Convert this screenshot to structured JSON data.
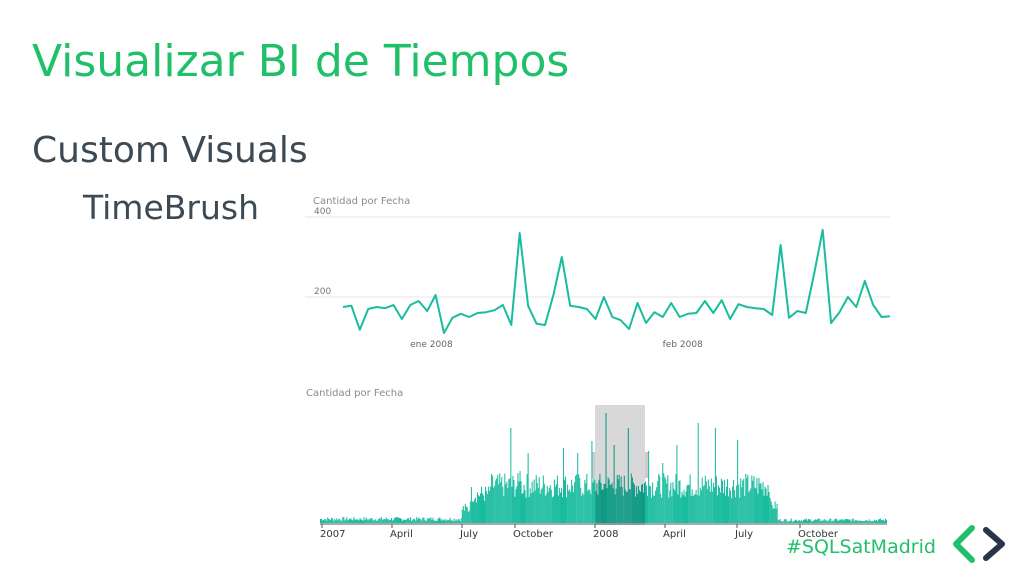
{
  "slide": {
    "title": "Visualizar BI de Tiempos",
    "heading": "Custom Visuals",
    "subheading": "TimeBrush",
    "hashtag": "#SQLSatMadrid"
  },
  "colors": {
    "title": "#20c06a",
    "text": "#3c4a56",
    "series": "#1abca0",
    "series_dark": "#0f9a86",
    "brush": "#d4d4d4"
  },
  "icons": {
    "logo": "chevrons-logo-icon"
  },
  "chart_data": [
    {
      "type": "line",
      "title": "Cantidad por Fecha",
      "ytick_labels": [
        "400",
        "200"
      ],
      "yticks": [
        400,
        200
      ],
      "ylim": [
        80,
        410
      ],
      "xtick_labels": [
        "ene 2008",
        "feb 2008"
      ],
      "xtick_index": [
        10,
        40
      ],
      "grid": true,
      "series": [
        {
          "values": [
            175,
            178,
            118,
            170,
            175,
            172,
            180,
            145,
            180,
            190,
            165,
            205,
            110,
            148,
            158,
            150,
            160,
            162,
            167,
            180,
            130,
            360,
            178,
            133,
            130,
            205,
            300,
            178,
            175,
            170,
            145,
            200,
            150,
            142,
            120,
            185,
            135,
            162,
            150,
            185,
            150,
            158,
            160,
            190,
            160,
            192,
            145,
            182,
            175,
            172,
            170,
            155,
            330,
            148,
            165,
            160,
            260,
            368,
            135,
            162,
            200,
            175,
            240,
            180,
            150,
            152
          ]
        }
      ]
    },
    {
      "type": "bar",
      "title": "Cantidad por Fecha",
      "xtick_labels": [
        "2007",
        "April",
        "July",
        "October",
        "2008",
        "April",
        "July",
        "October"
      ],
      "brush_range": [
        "2007-12",
        "2008-02"
      ],
      "density": {
        "pre_low": 5,
        "active": "2007-07 to 2008-09",
        "post_low": 4
      }
    }
  ]
}
